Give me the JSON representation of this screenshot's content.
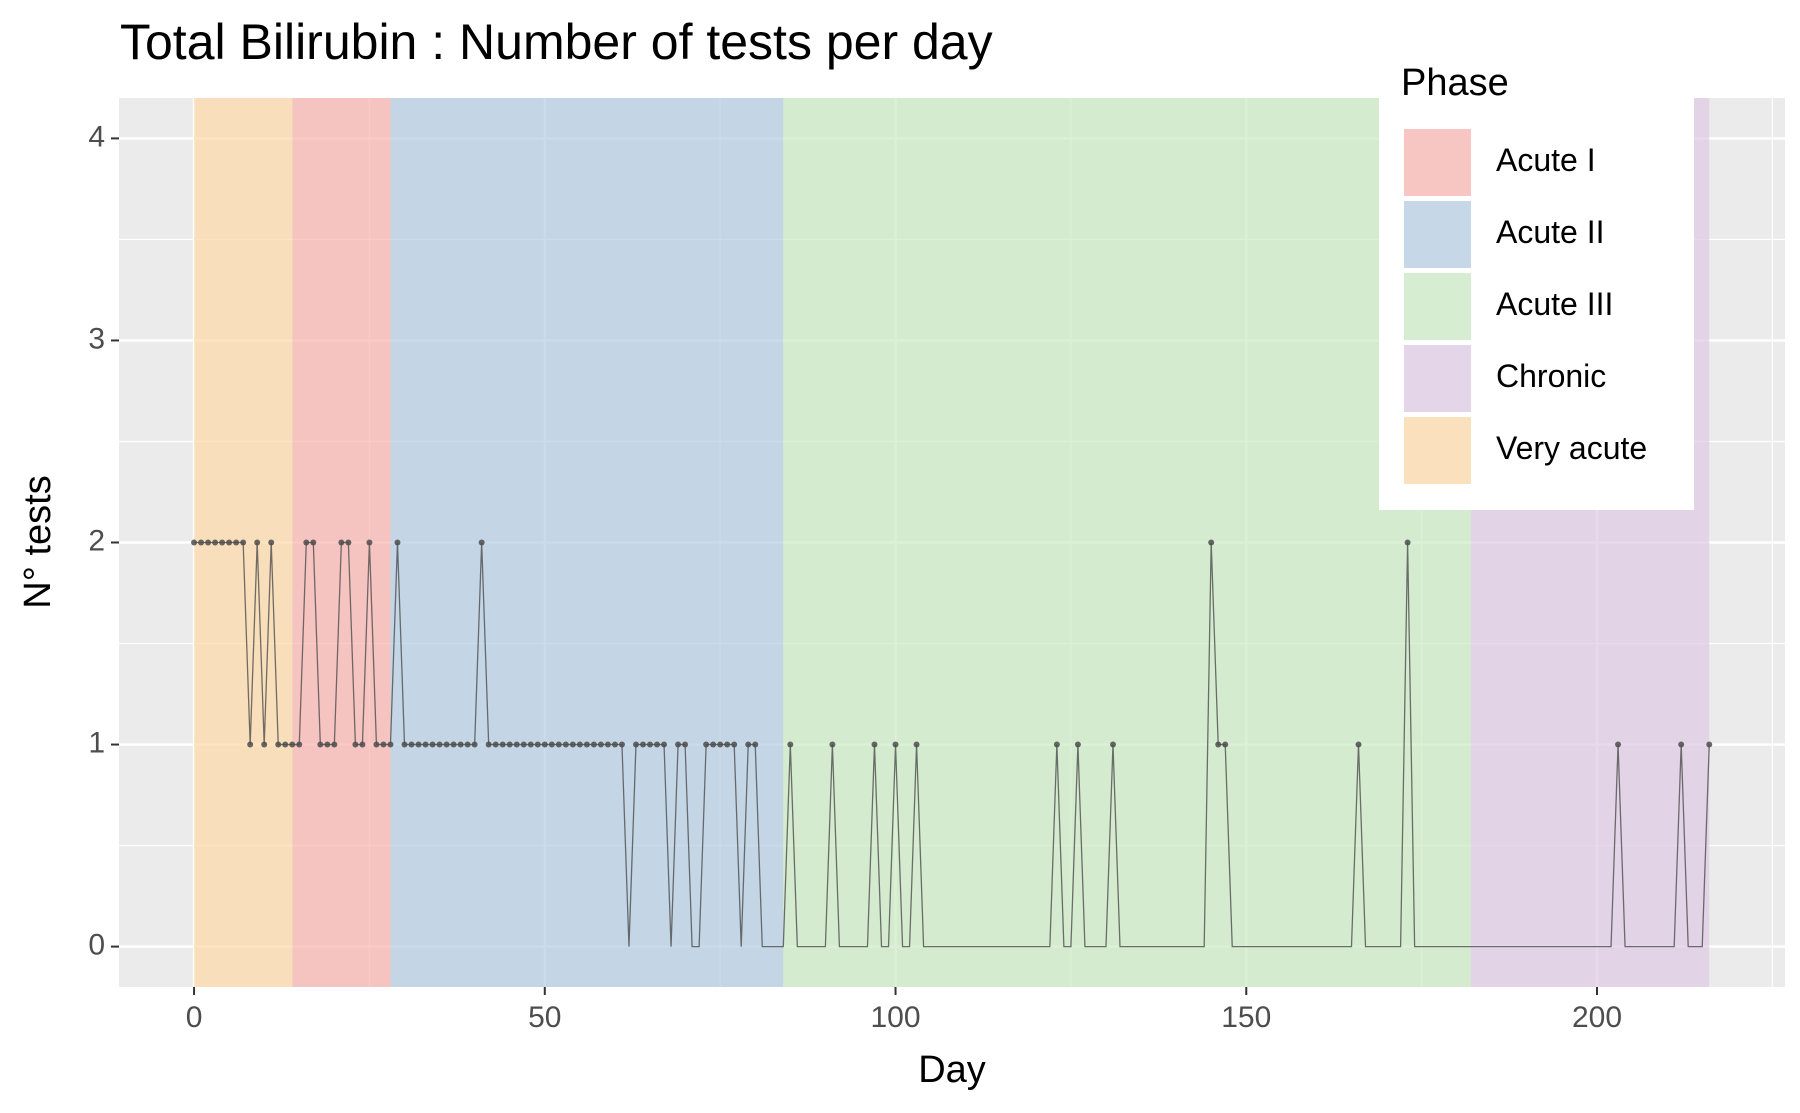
{
  "chart_data": {
    "type": "line",
    "title": "Total Bilirubin : Number of tests per day",
    "x_label": "Day",
    "y_label": "N° tests",
    "legend_title": "Phase",
    "phases": [
      {
        "name": "Acute I",
        "start": 14,
        "end": 28,
        "color": "#FBB4AE"
      },
      {
        "name": "Acute II",
        "start": 28,
        "end": 84,
        "color": "#B3CDE3"
      },
      {
        "name": "Acute III",
        "start": 84,
        "end": 182,
        "color": "#CCEBC5"
      },
      {
        "name": "Chronic",
        "start": 182,
        "end": 216,
        "color": "#DECBE4"
      },
      {
        "name": "Very acute",
        "start": 0,
        "end": 14,
        "color": "#FED9A6"
      }
    ],
    "x": [
      0,
      1,
      2,
      3,
      4,
      5,
      6,
      7,
      8,
      9,
      10,
      11,
      12,
      13,
      14,
      15,
      16,
      17,
      18,
      19,
      20,
      21,
      22,
      23,
      24,
      25,
      26,
      27,
      28,
      29,
      30,
      31,
      32,
      33,
      34,
      35,
      36,
      37,
      38,
      39,
      40,
      41,
      42,
      43,
      44,
      45,
      46,
      47,
      48,
      49,
      50,
      51,
      52,
      53,
      54,
      55,
      56,
      57,
      58,
      59,
      60,
      61,
      62,
      63,
      64,
      65,
      66,
      67,
      68,
      69,
      70,
      71,
      72,
      73,
      74,
      75,
      76,
      77,
      78,
      79,
      80,
      81,
      82,
      83,
      84,
      85,
      86,
      87,
      88,
      89,
      90,
      91,
      92,
      93,
      94,
      95,
      96,
      97,
      98,
      99,
      100,
      101,
      102,
      103,
      104,
      105,
      106,
      107,
      108,
      109,
      110,
      111,
      112,
      113,
      114,
      115,
      116,
      117,
      118,
      119,
      120,
      121,
      122,
      123,
      124,
      125,
      126,
      127,
      128,
      129,
      130,
      131,
      132,
      133,
      134,
      135,
      136,
      137,
      138,
      139,
      140,
      141,
      142,
      143,
      144,
      145,
      146,
      147,
      148,
      149,
      150,
      151,
      152,
      153,
      154,
      155,
      156,
      157,
      158,
      159,
      160,
      161,
      162,
      163,
      164,
      165,
      166,
      167,
      168,
      169,
      170,
      171,
      172,
      173,
      174,
      175,
      176,
      177,
      178,
      179,
      180,
      181,
      182,
      183,
      184,
      185,
      186,
      187,
      188,
      189,
      190,
      191,
      192,
      193,
      194,
      195,
      196,
      197,
      198,
      199,
      200,
      201,
      202,
      203,
      204,
      205,
      206,
      207,
      208,
      209,
      210,
      211,
      212,
      213,
      214,
      215,
      216
    ],
    "values": [
      2,
      2,
      2,
      2,
      2,
      2,
      2,
      2,
      1,
      2,
      1,
      2,
      1,
      1,
      1,
      1,
      2,
      2,
      1,
      1,
      1,
      2,
      2,
      1,
      1,
      2,
      1,
      1,
      1,
      2,
      1,
      1,
      1,
      1,
      1,
      1,
      1,
      1,
      1,
      1,
      1,
      2,
      1,
      1,
      1,
      1,
      1,
      1,
      1,
      1,
      1,
      1,
      1,
      1,
      1,
      1,
      1,
      1,
      1,
      1,
      1,
      1,
      0,
      1,
      1,
      1,
      1,
      1,
      0,
      1,
      1,
      0,
      0,
      1,
      1,
      1,
      1,
      1,
      0,
      1,
      1,
      0,
      0,
      0,
      0,
      1,
      0,
      0,
      0,
      0,
      0,
      1,
      0,
      0,
      0,
      0,
      0,
      1,
      0,
      0,
      1,
      0,
      0,
      1,
      0,
      0,
      0,
      0,
      0,
      0,
      0,
      0,
      0,
      0,
      0,
      0,
      0,
      0,
      0,
      0,
      0,
      0,
      0,
      1,
      0,
      0,
      1,
      0,
      0,
      0,
      0,
      1,
      0,
      0,
      0,
      0,
      0,
      0,
      0,
      0,
      0,
      0,
      0,
      0,
      0,
      2,
      1,
      1,
      0,
      0,
      0,
      0,
      0,
      0,
      0,
      0,
      0,
      0,
      0,
      0,
      0,
      0,
      0,
      0,
      0,
      0,
      1,
      0,
      0,
      0,
      0,
      0,
      0,
      2,
      0,
      0,
      0,
      0,
      0,
      0,
      0,
      0,
      0,
      0,
      0,
      0,
      0,
      0,
      0,
      0,
      0,
      0,
      0,
      0,
      0,
      0,
      0,
      0,
      0,
      0,
      0,
      0,
      0,
      1,
      0,
      0,
      0,
      0,
      0,
      0,
      0,
      0,
      1,
      0,
      0,
      0,
      1
    ],
    "color": "#4d4d4d",
    "xlim": [
      -10.7,
      226.8
    ],
    "ylim": [
      -0.2,
      4.2
    ],
    "xticks": [
      0,
      50,
      100,
      150,
      200
    ],
    "yticks": [
      0,
      1,
      2,
      3,
      4
    ],
    "grid": true
  }
}
